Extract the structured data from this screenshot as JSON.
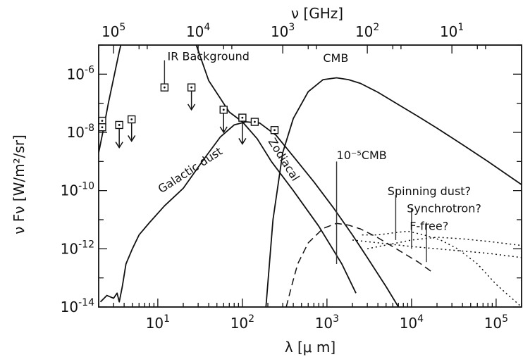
{
  "chart_data": {
    "type": "line",
    "title": "",
    "xscale": "log",
    "yscale": "log",
    "xlim": [
      2,
      200000
    ],
    "ylim": [
      1e-14,
      1e-05
    ],
    "xlabel": "λ [μ m]",
    "ylabel": "ν Fν [W/m²/sr]",
    "top_axis_label": "ν [GHz]",
    "x_ticks": [
      {
        "value": 10,
        "base": "10",
        "exp": "1"
      },
      {
        "value": 100,
        "base": "10",
        "exp": "2"
      },
      {
        "value": 1000,
        "base": "10",
        "exp": "3"
      },
      {
        "value": 10000,
        "base": "10",
        "exp": "4"
      },
      {
        "value": 100000,
        "base": "10",
        "exp": "5"
      }
    ],
    "top_ticks": [
      {
        "lambda": 3,
        "base": "10",
        "exp": "5"
      },
      {
        "lambda": 30,
        "base": "10",
        "exp": "4"
      },
      {
        "lambda": 300,
        "base": "10",
        "exp": "3"
      },
      {
        "lambda": 3000,
        "base": "10",
        "exp": "2"
      },
      {
        "lambda": 30000,
        "base": "10",
        "exp": "1"
      }
    ],
    "y_ticks": [
      {
        "value": 1e-06,
        "base": "10",
        "exp": "-6"
      },
      {
        "value": 1e-08,
        "base": "10",
        "exp": "-8"
      },
      {
        "value": 1e-10,
        "base": "10",
        "exp": "-10"
      },
      {
        "value": 1e-12,
        "base": "10",
        "exp": "-12"
      },
      {
        "value": 1e-14,
        "base": "10",
        "exp": "-14"
      }
    ],
    "series": [
      {
        "style": "solid",
        "x": [
          2.0,
          2.3,
          2.6,
          3.0,
          3.5,
          4.0
        ],
        "y": [
          2e-09,
          1.5e-08,
          1e-07,
          7e-07,
          6e-06,
          3e-05
        ]
      },
      {
        "style": "solid",
        "x": [
          25,
          40,
          70,
          100,
          150,
          220,
          400,
          800,
          1500,
          2200
        ],
        "y": [
          3e-05,
          6e-07,
          5e-08,
          2.3e-08,
          6e-09,
          1e-09,
          1e-10,
          6e-12,
          3e-13,
          3e-14
        ]
      },
      {
        "style": "solid",
        "x": [
          2.1,
          2.5,
          3.0,
          3.3,
          3.5,
          3.8,
          4.2,
          5.0,
          6.0,
          8.0,
          12,
          20,
          35,
          55,
          80,
          110,
          160,
          250,
          400,
          700,
          1200,
          2000,
          3000,
          5000,
          7000
        ],
        "y": [
          1.5e-14,
          2.5e-14,
          2e-14,
          3e-14,
          1.5e-14,
          5e-14,
          3e-13,
          1e-12,
          3e-12,
          8e-12,
          3e-11,
          1.2e-10,
          1.2e-09,
          7e-09,
          1.8e-08,
          2.3e-08,
          2.1e-08,
          8e-09,
          1.5e-09,
          2e-10,
          2.5e-11,
          3e-12,
          5e-13,
          5e-14,
          1e-14
        ]
      },
      {
        "style": "solid",
        "x": [
          190,
          230,
          300,
          400,
          600,
          900,
          1300,
          1800,
          2500,
          4000,
          7000,
          12000,
          20000,
          40000,
          80000,
          160000,
          200000
        ],
        "y": [
          1e-14,
          1e-11,
          2e-09,
          3e-08,
          2.5e-07,
          6.5e-07,
          7.5e-07,
          6.5e-07,
          4.8e-07,
          2.4e-07,
          9e-08,
          3.5e-08,
          1.4e-08,
          3.8e-09,
          1e-09,
          2.5e-10,
          1.6e-10
        ]
      },
      {
        "style": "dashed",
        "x": [
          330,
          380,
          450,
          600,
          900,
          1300,
          1800,
          2500,
          4000,
          7000,
          12000,
          18000
        ],
        "y": [
          1e-14,
          5e-14,
          3e-13,
          1.6e-12,
          5e-12,
          7.5e-12,
          6.5e-12,
          4.8e-12,
          2.4e-12,
          9e-13,
          3.5e-13,
          1.5e-13
        ]
      },
      {
        "style": "dotted",
        "x": [
          2600,
          4000,
          6000,
          9000,
          14000,
          22000,
          35000,
          60000,
          100000,
          200000
        ],
        "y": [
          3e-12,
          3e-12,
          3.5e-12,
          4e-12,
          3e-12,
          2e-12,
          1e-12,
          3e-13,
          6e-14,
          1e-14
        ]
      },
      {
        "style": "dotted",
        "x": [
          3000,
          6000,
          10000,
          20000,
          40000,
          80000,
          200000
        ],
        "y": [
          1e-12,
          1.5e-12,
          2e-12,
          2.5e-12,
          2.2e-12,
          1.8e-12,
          1.3e-12
        ]
      },
      {
        "style": "dotted",
        "x": [
          2000,
          5000,
          10000,
          30000,
          80000,
          200000
        ],
        "y": [
          2e-12,
          1.5e-12,
          1.2e-12,
          9e-13,
          7e-13,
          5e-13
        ]
      }
    ],
    "markers": [
      {
        "x": 2.2,
        "y": 2.5e-08
      },
      {
        "x": 2.2,
        "y": 1.5e-08
      },
      {
        "x": 3.5,
        "y": 1.8e-08
      },
      {
        "x": 4.9,
        "y": 2.8e-08
      },
      {
        "x": 12,
        "y": 3.5e-07
      },
      {
        "x": 25,
        "y": 3.5e-07
      },
      {
        "x": 60,
        "y": 6e-08
      },
      {
        "x": 100,
        "y": 3.2e-08
      },
      {
        "x": 140,
        "y": 2.3e-08
      },
      {
        "x": 240,
        "y": 1.2e-08
      }
    ],
    "arrows": [
      {
        "x": 3.5,
        "y_from": 1.6e-08,
        "y_to": 3e-09
      },
      {
        "x": 4.9,
        "y_from": 2.5e-08,
        "y_to": 5e-09
      },
      {
        "x": 25,
        "y_from": 3e-07,
        "y_to": 6e-08
      },
      {
        "x": 60,
        "y_from": 5e-08,
        "y_to": 1e-08
      },
      {
        "x": 100,
        "y_from": 3e-08,
        "y_to": 4e-09
      }
    ],
    "vlines": [
      {
        "x": 12,
        "y_from": 3e-07,
        "y_to": 3e-06
      },
      {
        "x": 1300,
        "y_from": 3e-13,
        "y_to": 1e-09
      },
      {
        "x": 6500,
        "y_from": 2e-12,
        "y_to": 7e-11
      },
      {
        "x": 10000,
        "y_from": 1e-12,
        "y_to": 2.5e-11
      },
      {
        "x": 15000,
        "y_from": 3.5e-13,
        "y_to": 8e-12
      }
    ],
    "annotations": [
      {
        "text": "IR Background",
        "x": 13,
        "y": 3e-06,
        "rotate": 0
      },
      {
        "text": "CMB",
        "x": 900,
        "y": 2.6e-06,
        "rotate": 0
      },
      {
        "text": "Galactic dust",
        "x": 11,
        "y": 8e-11,
        "rotate": -33
      },
      {
        "text": "Zodiacal",
        "x": 200,
        "y": 5e-09,
        "rotate": 58
      },
      {
        "text": "10⁻⁵CMB",
        "x": 1300,
        "y": 1.2e-09,
        "rotate": 0
      },
      {
        "text": "Spinning dust?",
        "x": 5200,
        "y": 7e-11,
        "rotate": 0
      },
      {
        "text": "Synchrotron?",
        "x": 8800,
        "y": 1.8e-11,
        "rotate": 0
      },
      {
        "text": "F-free?",
        "x": 9500,
        "y": 4.5e-12,
        "rotate": 0
      }
    ],
    "grid": false,
    "legend": "none"
  }
}
